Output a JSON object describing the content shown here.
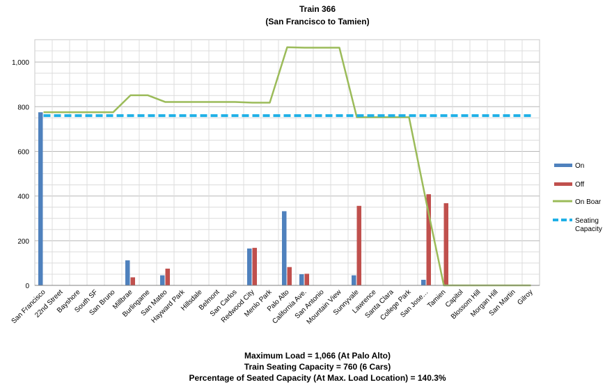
{
  "chart_data": {
    "type": "bar",
    "title": "Train 366",
    "subtitle": "(San Francisco to Tamien)",
    "categories": [
      "San Francisco",
      "22nd Street",
      "Bayshore",
      "South SF",
      "San Bruno",
      "Millbrae",
      "Burlingame",
      "San Mateo",
      "Hayward Park",
      "Hillsdale",
      "Belmont",
      "San Carlos",
      "Redwood City",
      "Menlo Park",
      "Palo Alto",
      "California Ave.",
      "San Antonio",
      "Mountain View",
      "Sunnyvale",
      "Lawrence",
      "Santa Clara",
      "College Park",
      "San Jose…",
      "Tamien",
      "Capitol",
      "Blossom Hill",
      "Morgan Hill",
      "San Martin",
      "Gilroy"
    ],
    "ylim": [
      0,
      1100
    ],
    "yticks": [
      0,
      200,
      400,
      600,
      800,
      1000
    ],
    "ytick_labels": [
      "0",
      "200",
      "400",
      "600",
      "800",
      "1,000"
    ],
    "grid": true,
    "legend_position": "right",
    "series": [
      {
        "name": "On",
        "kind": "bar",
        "color": "#4f81bd",
        "values": [
          775,
          0,
          0,
          0,
          0,
          112,
          0,
          45,
          0,
          0,
          0,
          0,
          165,
          0,
          332,
          50,
          0,
          0,
          45,
          0,
          0,
          0,
          25,
          0,
          0,
          0,
          0,
          0,
          0
        ]
      },
      {
        "name": "Off",
        "kind": "bar",
        "color": "#c0504d",
        "values": [
          0,
          0,
          0,
          0,
          0,
          36,
          0,
          75,
          0,
          0,
          0,
          0,
          168,
          0,
          82,
          52,
          0,
          0,
          356,
          0,
          0,
          0,
          408,
          368,
          0,
          0,
          0,
          0,
          0
        ]
      },
      {
        "name": "On Board",
        "kind": "line",
        "color": "#9bbb59",
        "values": [
          775,
          775,
          775,
          775,
          775,
          851,
          851,
          821,
          821,
          821,
          821,
          821,
          818,
          818,
          1066,
          1064,
          1064,
          1064,
          753,
          753,
          753,
          753,
          370,
          0,
          0,
          0,
          0,
          0,
          0
        ]
      },
      {
        "name": "Seating Capacity",
        "kind": "dashed-line",
        "color": "#1fb0e6",
        "values": [
          760,
          760,
          760,
          760,
          760,
          760,
          760,
          760,
          760,
          760,
          760,
          760,
          760,
          760,
          760,
          760,
          760,
          760,
          760,
          760,
          760,
          760,
          760,
          760,
          760,
          760,
          760,
          760,
          760
        ]
      }
    ],
    "legend_labels": [
      "On",
      "Off",
      "On Boar",
      "Seating",
      "Capacity"
    ],
    "footer": [
      "Maximum Load = 1,066 (At Palo Alto)",
      "Train Seating Capacity = 760 (6 Cars)",
      "Percentage of Seated Capacity (At Max. Load Location) = 140.3%"
    ]
  }
}
